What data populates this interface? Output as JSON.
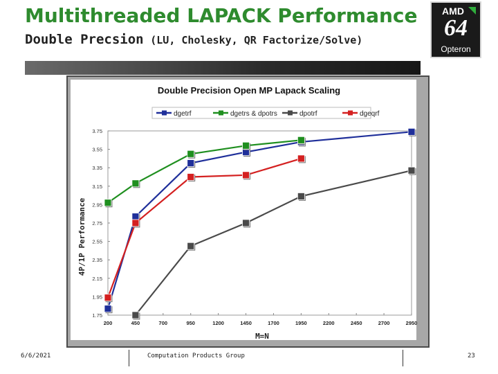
{
  "slide": {
    "title": "Multithreaded LAPACK Performance",
    "subtitle_main": "Double Precsion",
    "subtitle_paren": "(LU, Cholesky, QR Factorize/Solve)",
    "footer_date": "6/6/2021",
    "footer_org": "Computation Products Group",
    "page_number": "23"
  },
  "logo": {
    "text_top": "AMD",
    "text_mark": "64",
    "text_brand": "Opteron"
  },
  "chart_data": {
    "type": "line",
    "title": "Double Precision Open MP Lapack Scaling",
    "xlabel": "M=N",
    "ylabel": "4P/1P Performance",
    "x_ticks": [
      200,
      450,
      700,
      950,
      1200,
      1450,
      1700,
      1950,
      2200,
      2450,
      2700,
      2950
    ],
    "y_ticks": [
      1.75,
      1.95,
      2.15,
      2.35,
      2.55,
      2.75,
      2.95,
      3.15,
      3.35,
      3.55,
      3.75
    ],
    "xlim": [
      200,
      2950
    ],
    "ylim": [
      1.75,
      3.75
    ],
    "legend_position": "top",
    "series": [
      {
        "name": "dgetrf",
        "color": "#1f2f9a",
        "x": [
          200,
          450,
          950,
          1450,
          1950,
          2950
        ],
        "y": [
          1.82,
          2.82,
          3.4,
          3.52,
          3.63,
          3.74
        ]
      },
      {
        "name": "dgetrs & dpotrs",
        "color": "#1f8f1f",
        "x": [
          200,
          450,
          950,
          1450,
          1950
        ],
        "y": [
          2.97,
          3.18,
          3.5,
          3.59,
          3.65
        ]
      },
      {
        "name": "dpotrf",
        "color": "#4a4a4a",
        "x": [
          450,
          950,
          1450,
          1950,
          2950
        ],
        "y": [
          1.75,
          2.5,
          2.75,
          3.04,
          3.32
        ]
      },
      {
        "name": "dgeqrf",
        "color": "#d42020",
        "x": [
          200,
          450,
          950,
          1450,
          1950
        ],
        "y": [
          1.94,
          2.75,
          3.25,
          3.27,
          3.45
        ]
      }
    ]
  }
}
